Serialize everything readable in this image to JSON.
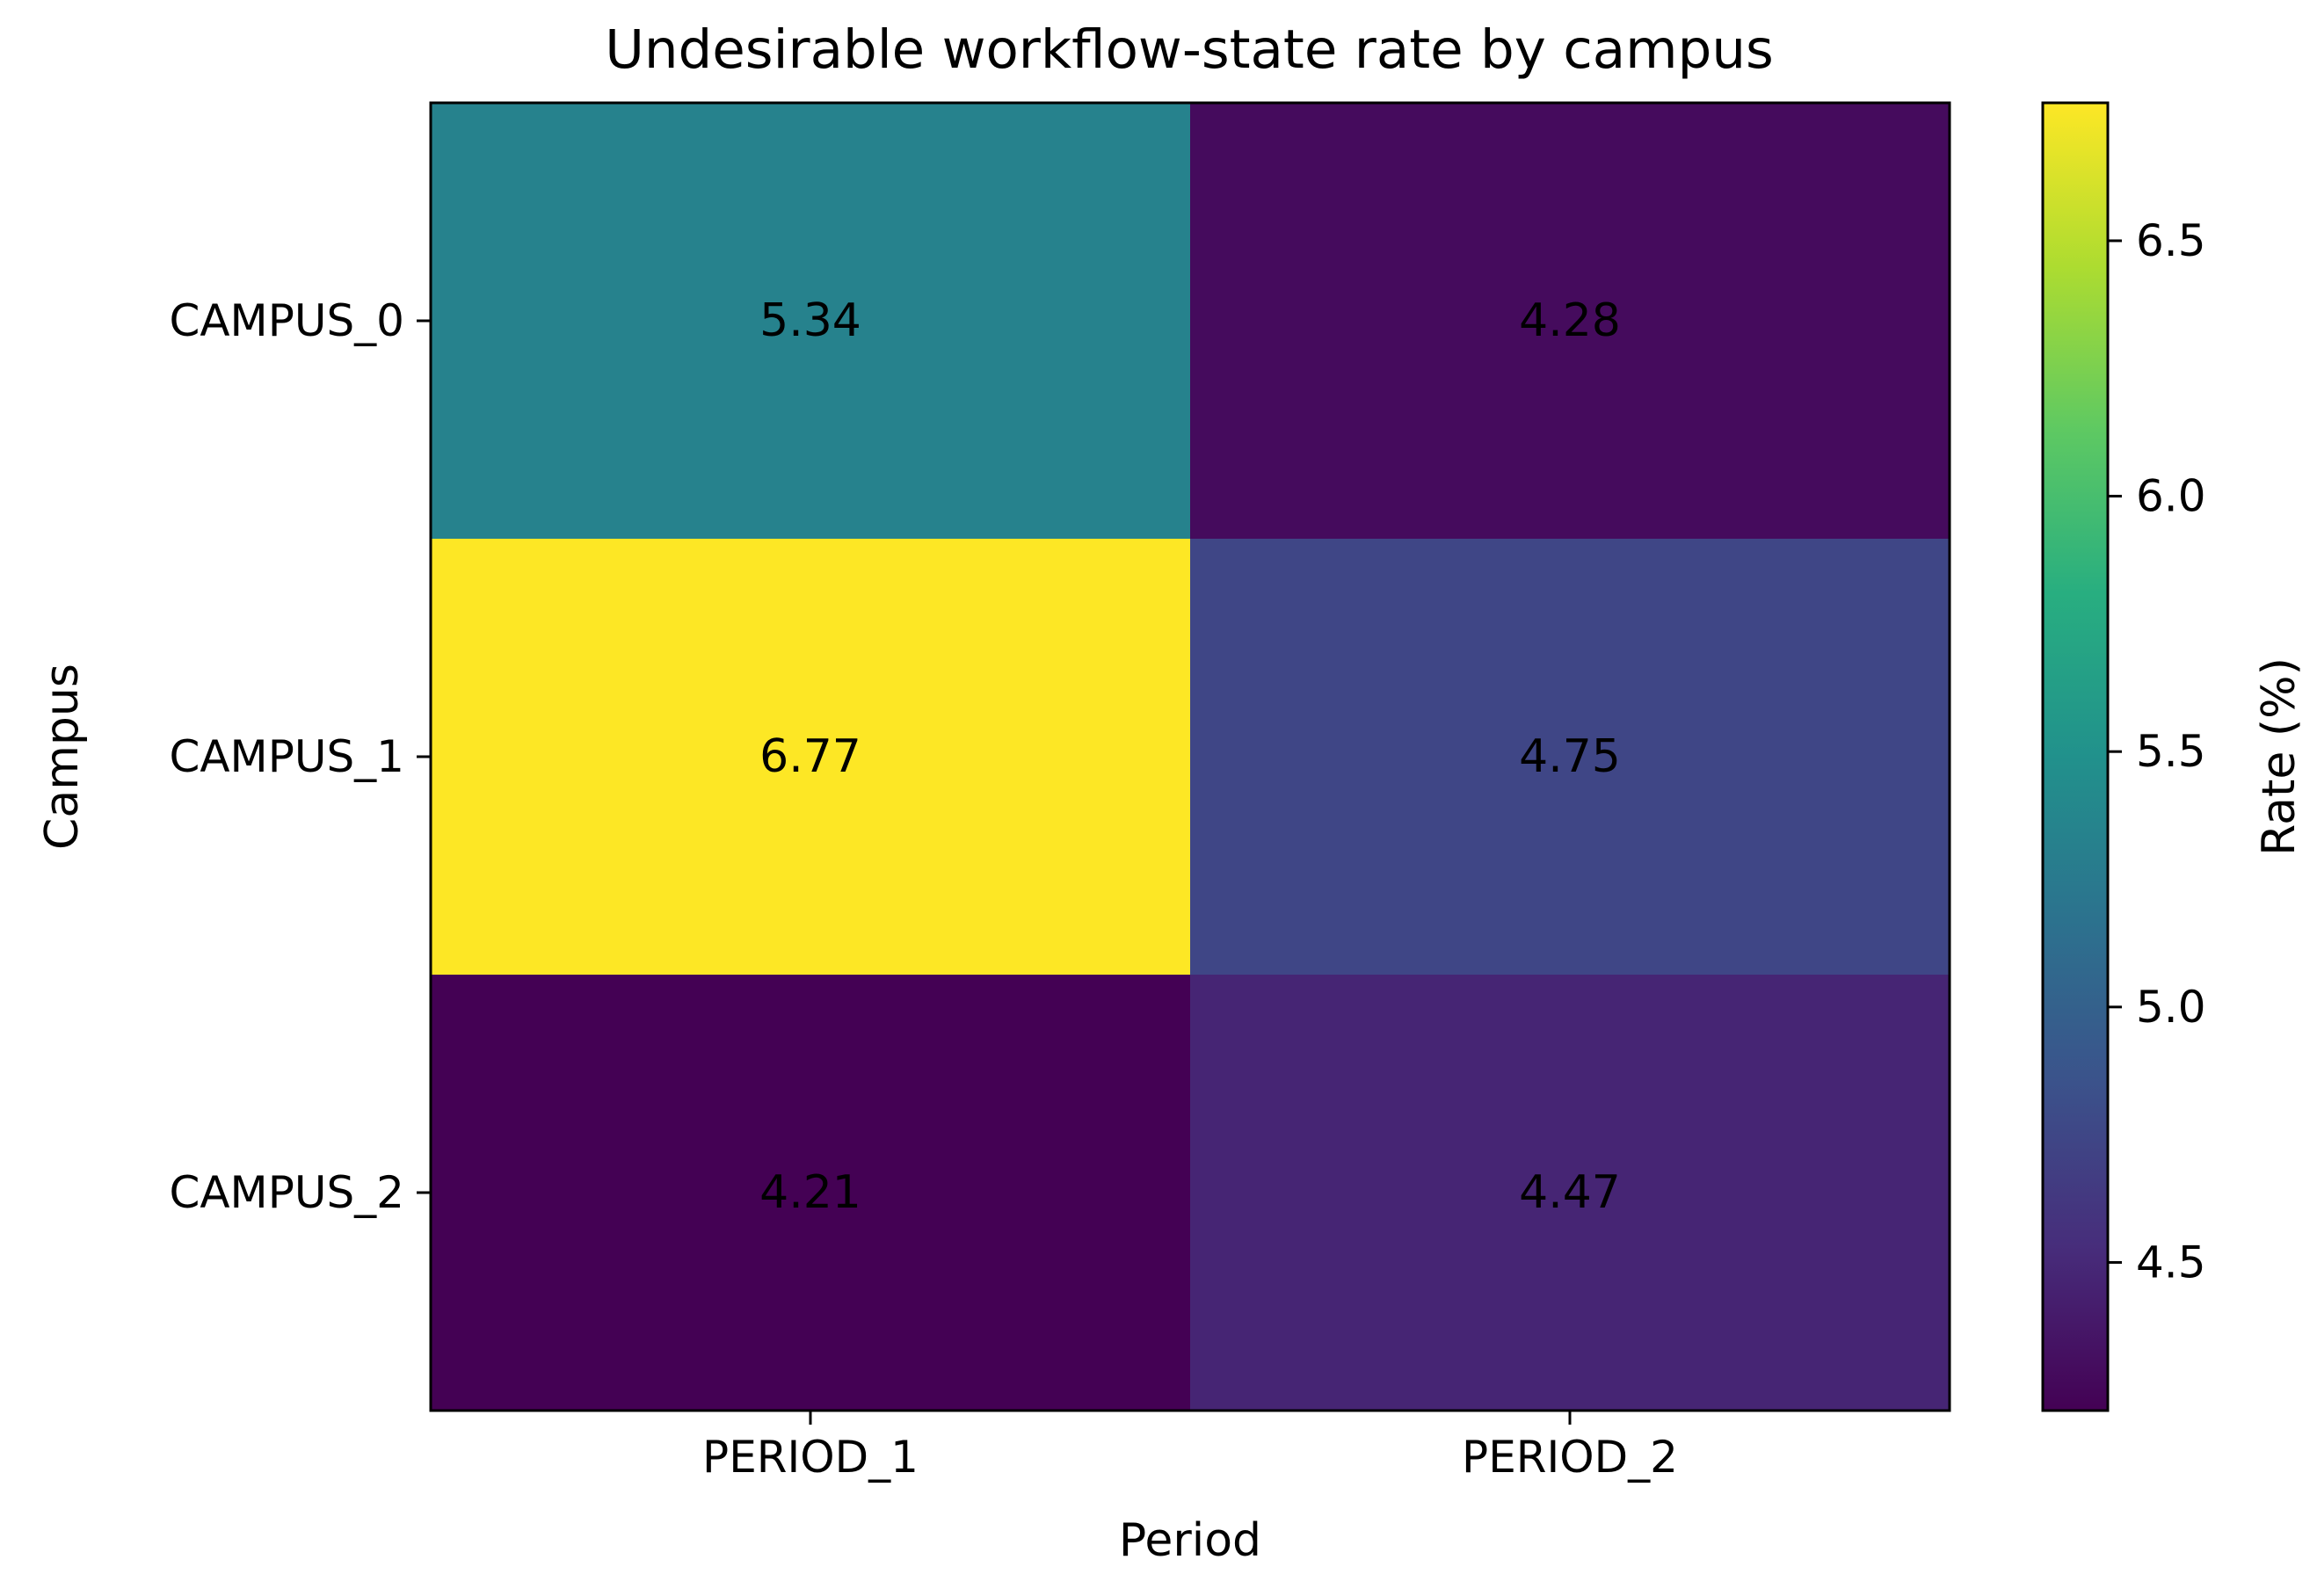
{
  "chart_data": {
    "type": "heatmap",
    "title": "Undesirable workflow-state rate by campus",
    "xlabel": "Period",
    "ylabel": "Campus",
    "x_categories": [
      "PERIOD_1",
      "PERIOD_2"
    ],
    "y_categories": [
      "CAMPUS_0",
      "CAMPUS_1",
      "CAMPUS_2"
    ],
    "values": [
      [
        5.34,
        4.28
      ],
      [
        6.77,
        4.75
      ],
      [
        4.21,
        4.47
      ]
    ],
    "value_labels": [
      [
        "5.34",
        "4.28"
      ],
      [
        "6.77",
        "4.75"
      ],
      [
        "4.21",
        "4.47"
      ]
    ],
    "colorbar": {
      "label": "Rate (%)",
      "range": [
        4.21,
        6.77
      ],
      "ticks": [
        4.5,
        5.0,
        5.5,
        6.0,
        6.5
      ],
      "tick_labels": [
        "4.5",
        "5.0",
        "5.5",
        "6.0",
        "6.5"
      ],
      "colormap": "viridis"
    },
    "grid": false
  }
}
